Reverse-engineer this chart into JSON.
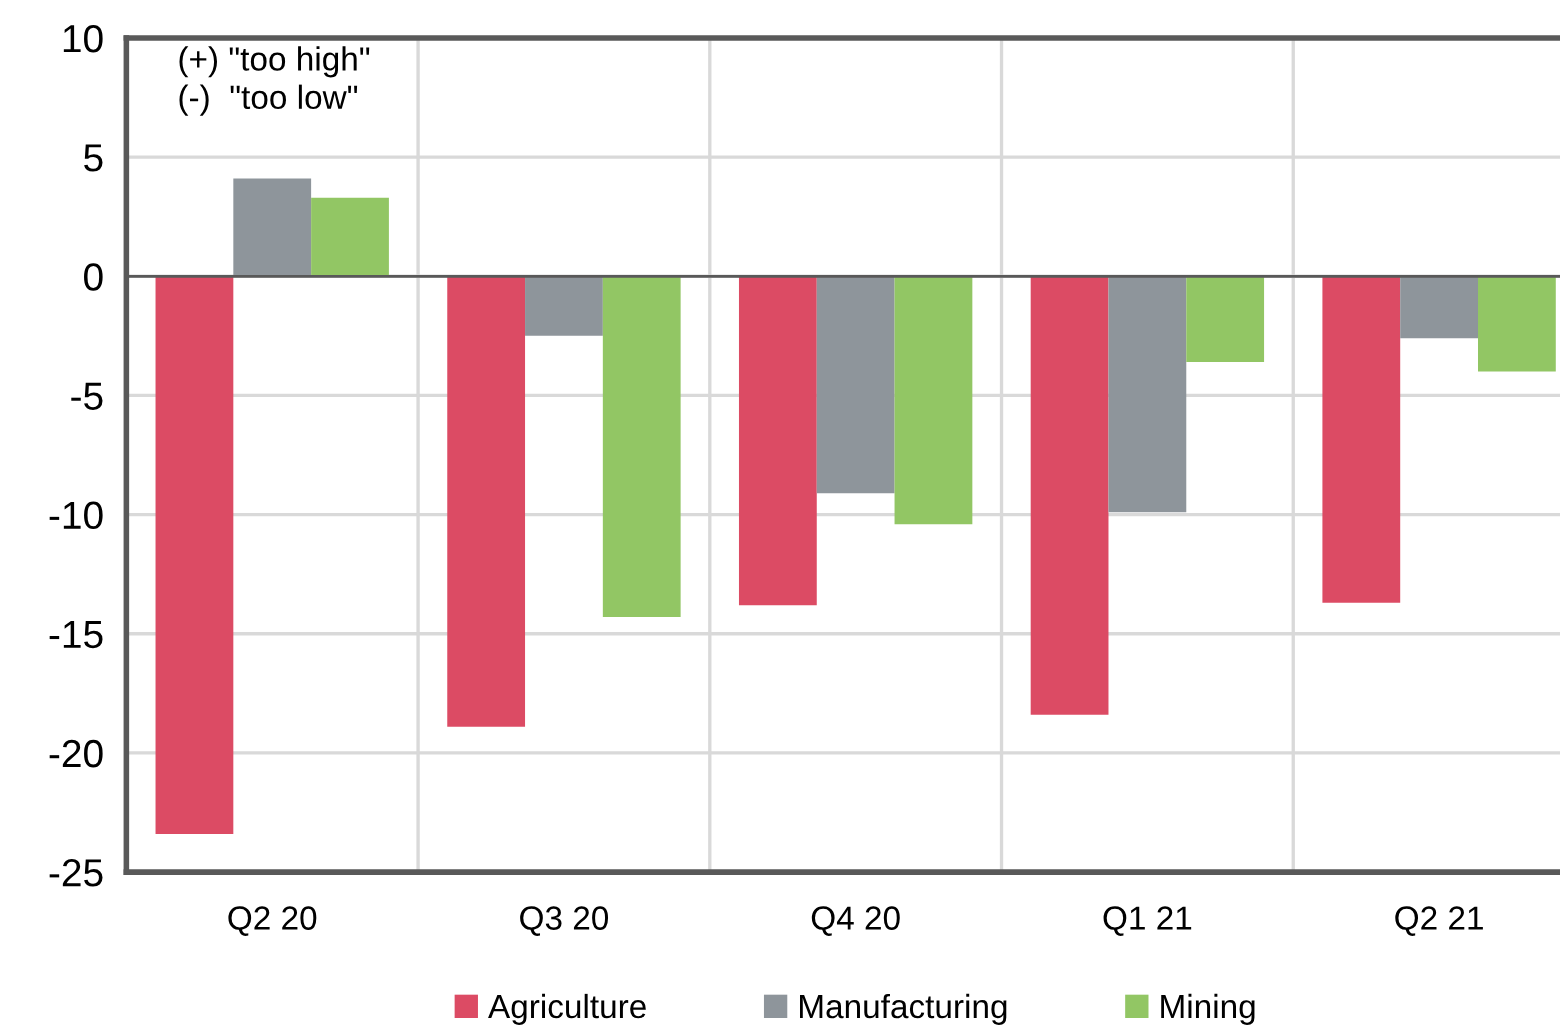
{
  "chart_data": {
    "type": "bar",
    "categories": [
      "Q2 20",
      "Q3 20",
      "Q4 20",
      "Q1 21",
      "Q2 21"
    ],
    "series": [
      {
        "name": "Agriculture",
        "color": "#dc4b64",
        "values": [
          -23.4,
          -18.9,
          -13.8,
          -18.4,
          -13.7
        ]
      },
      {
        "name": "Manufacturing",
        "color": "#8e959b",
        "values": [
          4.1,
          -2.5,
          -9.1,
          -9.9,
          -2.6
        ]
      },
      {
        "name": "Mining",
        "color": "#92c664",
        "values": [
          3.3,
          -14.3,
          -10.4,
          -3.6,
          -4.0
        ]
      }
    ],
    "ylim": [
      -25,
      10
    ],
    "yticks": [
      -25,
      -20,
      -15,
      -10,
      -5,
      0,
      5,
      10
    ],
    "grid": true,
    "legend": "bottom",
    "annotations": [
      "(+) \"too high\"\n(-)  \"too low\""
    ]
  }
}
